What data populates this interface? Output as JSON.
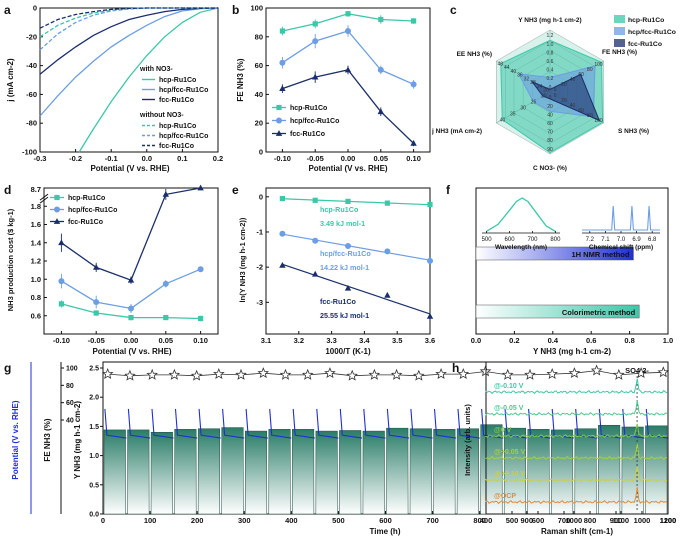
{
  "colors": {
    "hcp": "#3cc7a8",
    "mix": "#6c9ee3",
    "fcc": "#1a2e6b",
    "blue": "#1f2fd6",
    "bar": "#2a7d68",
    "ink": "#111111",
    "pale": "#c9ece3"
  },
  "chart_data": [
    {
      "panel": "a",
      "type": "line",
      "xlabel": "Potential (V vs. RHE)",
      "ylabel": "j (mA cm-2)",
      "xlim": [
        -0.3,
        0.2
      ],
      "ylim": [
        -100,
        0
      ],
      "xticks": [
        -0.3,
        -0.2,
        -0.1,
        0.0,
        0.1,
        0.2
      ],
      "yticks": [
        0,
        -20,
        -40,
        -60,
        -80,
        -100
      ],
      "xtick_labels": [
        "-0.3",
        "-0.2",
        "-0.1",
        "0.0",
        "0.1",
        "0.2"
      ],
      "ytick_labels": [
        "0",
        "-20",
        "-40",
        "-60",
        "-80",
        "-100"
      ],
      "legend_title_with": "with NO3-",
      "legend_title_without": "without NO3-",
      "series": [
        {
          "name": "hcp-Ru1Co",
          "group": "with",
          "color": "hcp",
          "dash": false,
          "x": [
            -0.19,
            -0.15,
            -0.1,
            -0.05,
            0.0,
            0.05,
            0.1,
            0.15,
            0.2
          ],
          "y": [
            -100,
            -84,
            -65,
            -48,
            -33,
            -20,
            -10,
            -3,
            0
          ]
        },
        {
          "name": "hcp/fcc-Ru1Co",
          "group": "with",
          "color": "mix",
          "dash": false,
          "x": [
            -0.3,
            -0.25,
            -0.2,
            -0.15,
            -0.1,
            -0.05,
            0.0,
            0.05,
            0.1,
            0.15,
            0.2
          ],
          "y": [
            -75,
            -61,
            -48,
            -37,
            -27,
            -19,
            -12,
            -6,
            -2,
            -0.5,
            0
          ]
        },
        {
          "name": "fcc-Ru1Co",
          "group": "with",
          "color": "fcc",
          "dash": false,
          "x": [
            -0.3,
            -0.25,
            -0.2,
            -0.15,
            -0.1,
            -0.05,
            0.0,
            0.05,
            0.1,
            0.15,
            0.2
          ],
          "y": [
            -46,
            -36,
            -27,
            -19,
            -13,
            -8,
            -5,
            -2.5,
            -1,
            -0.3,
            0
          ]
        },
        {
          "name": "hcp-Ru1Co",
          "group": "without",
          "color": "hcp",
          "dash": true,
          "x": [
            -0.3,
            -0.25,
            -0.2,
            -0.15,
            -0.1,
            -0.05,
            0.0,
            0.05,
            0.1,
            0.15,
            0.2
          ],
          "y": [
            -20,
            -12,
            -7,
            -3.5,
            -1.5,
            -0.5,
            0,
            0,
            0,
            0,
            0
          ]
        },
        {
          "name": "hcp/fcc-Ru1Co",
          "group": "without",
          "color": "mix",
          "dash": true,
          "x": [
            -0.3,
            -0.25,
            -0.2,
            -0.15,
            -0.1,
            -0.05,
            0.0,
            0.05,
            0.1,
            0.15,
            0.2
          ],
          "y": [
            -29,
            -18,
            -10,
            -5,
            -2,
            -0.7,
            0,
            0,
            0,
            0,
            0
          ]
        },
        {
          "name": "fcc-Ru1Co",
          "group": "without",
          "color": "fcc",
          "dash": true,
          "x": [
            -0.3,
            -0.25,
            -0.2,
            -0.15,
            -0.1,
            -0.05,
            0.0,
            0.05,
            0.1,
            0.15,
            0.2
          ],
          "y": [
            -14,
            -8,
            -4.5,
            -2.5,
            -1,
            -0.3,
            0,
            0,
            0,
            0,
            0
          ]
        }
      ]
    },
    {
      "panel": "b",
      "type": "line",
      "xlabel": "Potential (V vs. RHE)",
      "ylabel": "FE NH3 (%)",
      "x": [
        -0.1,
        -0.05,
        0.0,
        0.05,
        0.1
      ],
      "xlim": [
        -0.125,
        0.125
      ],
      "ylim": [
        0,
        100
      ],
      "xticks": [
        -0.1,
        -0.05,
        0.0,
        0.05,
        0.1
      ],
      "yticks": [
        0,
        20,
        40,
        60,
        80,
        100
      ],
      "xtick_labels": [
        "-0.10",
        "-0.05",
        "0.00",
        "0.05",
        "0.10"
      ],
      "ytick_labels": [
        "0",
        "20",
        "40",
        "60",
        "80",
        "100"
      ],
      "series": [
        {
          "name": "hcp-Ru1Co",
          "color": "hcp",
          "marker": "square",
          "values": [
            84,
            89,
            96,
            92,
            91
          ],
          "err": [
            3,
            3,
            2,
            3,
            2
          ]
        },
        {
          "name": "hcp/fcc-Ru1Co",
          "color": "mix",
          "marker": "circle",
          "values": [
            62,
            77,
            84,
            57,
            47
          ],
          "err": [
            4,
            5,
            4,
            3,
            3
          ]
        },
        {
          "name": "fcc-Ru1Co",
          "color": "fcc",
          "marker": "triangle",
          "values": [
            44,
            52,
            57,
            28,
            6
          ],
          "err": [
            3,
            4,
            3,
            3,
            2
          ]
        }
      ]
    },
    {
      "panel": "c",
      "type": "radar",
      "axes": [
        {
          "label": "Y NH3 (mg h-1 cm-2)",
          "ticks": [
            "0",
            "0.2",
            "0.4",
            "0.6",
            "0.8",
            "1.0",
            "1.2"
          ],
          "max": 1.2
        },
        {
          "label": "FE NH3 (%)",
          "ticks": [
            "0",
            "20",
            "40",
            "60",
            "80",
            "100"
          ],
          "max": 100
        },
        {
          "label": "S NH3 (%)",
          "ticks": [
            "0",
            "20",
            "40",
            "60",
            "80",
            "100"
          ],
          "max": 100
        },
        {
          "label": "C NO3- (%)",
          "ticks": [
            "0",
            "20",
            "40",
            "60",
            "70",
            "80",
            "90"
          ],
          "max": 90
        },
        {
          "label": "j NH3 (mA cm-2)",
          "ticks": [
            "20",
            "25",
            "30",
            "35",
            "40"
          ],
          "max": 45
        },
        {
          "label": "EE NH3 (%)",
          "ticks": [
            "20",
            "24",
            "28",
            "32",
            "36",
            "40",
            "44",
            "48"
          ],
          "max": 48
        }
      ],
      "series": [
        {
          "name": "hcp-Ru1Co",
          "color": "hcp",
          "values": [
            1.0,
            96,
            98,
            88,
            40,
            44
          ]
        },
        {
          "name": "hcp/fcc-Ru1Co",
          "color": "mix",
          "values": [
            0.28,
            84,
            80,
            28,
            14,
            28
          ]
        },
        {
          "name": "fcc-Ru1Co",
          "color": "fcc",
          "values": [
            0.05,
            57,
            92,
            10,
            6,
            16
          ]
        }
      ]
    },
    {
      "panel": "d",
      "type": "line",
      "xlabel": "Potential (V vs. RHE)",
      "ylabel": "NH3 production cost ($ kg-1)",
      "x": [
        -0.1,
        -0.05,
        0.0,
        0.05,
        0.1
      ],
      "xlim": [
        -0.125,
        0.125
      ],
      "ylim": [
        0.4,
        2.0
      ],
      "xticks": [
        -0.1,
        -0.05,
        0.0,
        0.05,
        0.1
      ],
      "yticks": [
        0.6,
        0.8,
        1.0,
        1.2,
        1.4,
        1.6,
        1.8
      ],
      "xtick_labels": [
        "-0.10",
        "-0.05",
        "0.00",
        "0.05",
        "0.10"
      ],
      "ytick_labels": [
        "0.6",
        "0.8",
        "1.0",
        "1.2",
        "1.4",
        "1.6",
        "1.8"
      ],
      "break_label": "8.7",
      "series": [
        {
          "name": "hcp-Ru1Co",
          "color": "hcp",
          "marker": "square",
          "values": [
            0.73,
            0.63,
            0.58,
            0.58,
            0.57
          ],
          "err": [
            0.04,
            0.03,
            0.03,
            0.02,
            0.03
          ]
        },
        {
          "name": "hcp/fcc-Ru1Co",
          "color": "mix",
          "marker": "circle",
          "values": [
            0.98,
            0.75,
            0.68,
            0.95,
            1.11
          ],
          "err": [
            0.08,
            0.07,
            0.05,
            0.04,
            0.03
          ]
        },
        {
          "name": "fcc-Ru1Co",
          "color": "fcc",
          "marker": "triangle",
          "values": [
            1.4,
            1.13,
            0.99,
            1.93,
            2.0
          ],
          "err": [
            0.1,
            0.05,
            0.04,
            0.06,
            0
          ]
        }
      ]
    },
    {
      "panel": "e",
      "type": "scatter",
      "xlabel": "1000/T (K-1)",
      "ylabel": "ln(Y NH3 (mg h-1 cm-2))",
      "xlim": [
        3.1,
        3.6
      ],
      "ylim": [
        -3.9,
        0.25
      ],
      "xticks": [
        3.1,
        3.2,
        3.3,
        3.4,
        3.5,
        3.6
      ],
      "yticks": [
        0,
        -1,
        -2,
        -3
      ],
      "xtick_labels": [
        "3.1",
        "3.2",
        "3.3",
        "3.4",
        "3.5",
        "3.6"
      ],
      "ytick_labels": [
        "0",
        "-1",
        "-2",
        "-3"
      ],
      "series": [
        {
          "name": "hcp-Ru1Co",
          "color": "hcp",
          "marker": "square",
          "x": [
            3.15,
            3.25,
            3.35,
            3.47,
            3.6
          ],
          "y": [
            -0.05,
            -0.1,
            -0.13,
            -0.18,
            -0.22
          ],
          "label": "hcp-Ru1Co",
          "ea": "3.49 kJ mol-1"
        },
        {
          "name": "hcp/fcc-Ru1Co",
          "color": "mix",
          "marker": "circle",
          "x": [
            3.15,
            3.25,
            3.35,
            3.47,
            3.6
          ],
          "y": [
            -1.05,
            -1.25,
            -1.4,
            -1.55,
            -1.82
          ],
          "label": "hcp/fcc-Ru1Co",
          "ea": "14.22 kJ mol-1"
        },
        {
          "name": "fcc-Ru1Co",
          "color": "fcc",
          "marker": "triangle",
          "x": [
            3.15,
            3.25,
            3.35,
            3.47,
            3.6
          ],
          "y": [
            -1.95,
            -2.2,
            -2.6,
            -2.8,
            -3.4
          ],
          "label": "fcc-Ru1Co",
          "ea": "25.55 kJ mol-1"
        }
      ]
    },
    {
      "panel": "f",
      "type": "bar",
      "xlabel": "Y NH3 (mg h-1 cm-2)",
      "xlim": [
        0,
        1.0
      ],
      "xticks": [
        0.0,
        0.2,
        0.4,
        0.6,
        0.8,
        1.0
      ],
      "xtick_labels": [
        "0.0",
        "0.2",
        "0.4",
        "0.6",
        "0.8",
        "1.0"
      ],
      "categories": [
        "1H NMR method",
        "Colorimetric method"
      ],
      "values": [
        0.82,
        0.85
      ],
      "inset_uv": {
        "xlabel": "Wavelength (nm)",
        "xticks": [
          "500",
          "600",
          "700",
          "800"
        ],
        "x": [
          500,
          550,
          600,
          630,
          655,
          680,
          720,
          760,
          800
        ],
        "y": [
          0.05,
          0.25,
          0.65,
          0.9,
          1.0,
          0.9,
          0.55,
          0.2,
          0.05
        ]
      },
      "inset_nmr": {
        "xlabel": "Chemical shift (ppm)",
        "xticks": [
          "7.2",
          "7.1",
          "7.0",
          "6.9",
          "6.8"
        ],
        "peaks": [
          7.05,
          6.93,
          6.82
        ]
      }
    },
    {
      "panel": "g",
      "type": "bar",
      "xlabel": "Time (h)",
      "ylabel_left": "Potential (V vs. RHE)",
      "ylabel_mid": "FE NH3 (%)",
      "ylabel_right": "Y NH3 (mg h-1 cm-2)",
      "xlim": [
        0,
        1200
      ],
      "xticks": [
        0,
        100,
        200,
        300,
        400,
        500,
        600,
        700,
        800,
        900,
        1000,
        1100,
        1200
      ],
      "xtick_labels": [
        "0",
        "100",
        "200",
        "300",
        "400",
        "500",
        "600",
        "700",
        "800",
        "900",
        "1000",
        "1100",
        "1200"
      ],
      "fe_ticks": [
        "40",
        "60",
        "80",
        "100"
      ],
      "fe_ylim": [
        40,
        100
      ],
      "y_ticks": [
        "0.0",
        "0.5",
        "1.0",
        "1.5",
        "2.0",
        "2.5"
      ],
      "y_ylim": [
        0,
        2.5
      ],
      "bars": [
        1.44,
        1.44,
        1.4,
        1.45,
        1.46,
        1.48,
        1.42,
        1.45,
        1.45,
        1.42,
        1.43,
        1.42,
        1.47,
        1.46,
        1.45,
        1.46,
        1.53,
        1.47,
        1.45,
        1.44,
        1.46,
        1.52,
        1.49,
        1.51
      ],
      "fe": [
        93,
        91,
        92,
        92,
        91,
        93,
        92,
        94,
        92,
        92,
        94,
        91,
        92,
        92,
        91,
        93,
        93,
        96,
        92,
        92,
        93,
        94,
        97,
        92,
        94,
        95
      ],
      "pulse_period": 50,
      "pulse_peak": 1.8,
      "pulse_base": 1.3
    },
    {
      "panel": "h",
      "type": "line",
      "xlabel": "Raman shift (cm-1)",
      "ylabel": "Intensity (arb. units)",
      "xlim": [
        400,
        1100
      ],
      "xticks": [
        400,
        500,
        600,
        700,
        800,
        900,
        1000,
        1100
      ],
      "xtick_labels": [
        "400",
        "500",
        "600",
        "700",
        "800",
        "900",
        "1000",
        "1100"
      ],
      "peak_label": "SO4 2-",
      "peak_position": 981,
      "series": [
        {
          "name": "@-0.10 V",
          "color": "#3cc7a8"
        },
        {
          "name": "@-0.05 V",
          "color": "#4cc98f"
        },
        {
          "name": "@0 V",
          "color": "#7ecb46"
        },
        {
          "name": "@+0.05 V",
          "color": "#a6d13a"
        },
        {
          "name": "@+0.10 V",
          "color": "#cdd039"
        },
        {
          "name": "@OCP",
          "color": "#e08a3a"
        }
      ]
    }
  ],
  "panel_letters": [
    "a",
    "b",
    "c",
    "d",
    "e",
    "f",
    "g",
    "h"
  ]
}
